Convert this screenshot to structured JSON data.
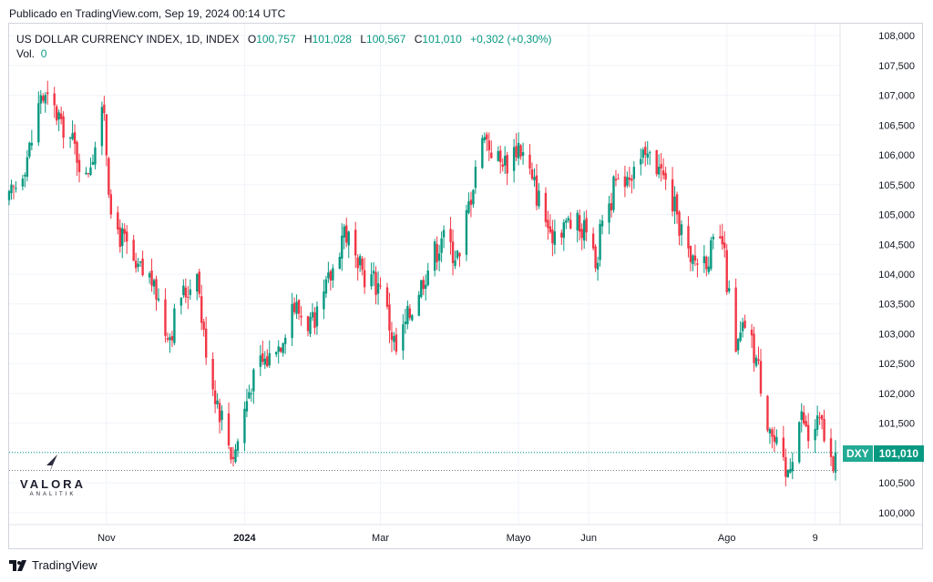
{
  "header": {
    "published": "Publicado en TradingView.com, Sep 19, 2024 00:14 UTC"
  },
  "legend": {
    "symbol": "US DOLLAR CURRENCY INDEX, 1D, INDEX",
    "open_label": "O",
    "open": "100,757",
    "high_label": "H",
    "high": "101,028",
    "low_label": "L",
    "low": "100,567",
    "close_label": "C",
    "close": "101,010",
    "change": "+0,302 (+0,30%)",
    "vol_label": "Vol.",
    "vol_value": "0"
  },
  "badge": {
    "symbol": "DXY",
    "price": "101,010"
  },
  "watermark": {
    "brand": "VALORA",
    "sub": "ANALITIK"
  },
  "footer": {
    "brand": "TradingView"
  },
  "colors": {
    "up": "#089981",
    "down": "#f23645",
    "grid": "#f0f3fa",
    "text": "#131722"
  },
  "chart_data": {
    "type": "candlestick",
    "title": "US DOLLAR CURRENCY INDEX, 1D, INDEX",
    "ylim": [
      99800,
      108200
    ],
    "y_ticks": [
      100000,
      100500,
      101000,
      101500,
      102000,
      102500,
      103000,
      103500,
      104000,
      104500,
      105000,
      105500,
      106000,
      106500,
      107000,
      107500,
      108000
    ],
    "y_tick_labels": [
      "100,000",
      "100,500",
      "101,000",
      "101,500",
      "102,000",
      "102,500",
      "103,000",
      "103,500",
      "104,000",
      "104,500",
      "105,000",
      "105,500",
      "106,000",
      "106,500",
      "107,000",
      "107,500",
      "108,000"
    ],
    "x_ticks": [
      {
        "label": "Nov",
        "date": "2023-11-01",
        "bold": false
      },
      {
        "label": "2024",
        "date": "2024-01-01",
        "bold": true
      },
      {
        "label": "Mar",
        "date": "2024-03-01",
        "bold": false
      },
      {
        "label": "Mayo",
        "date": "2024-05-01",
        "bold": false
      },
      {
        "label": "Jun",
        "date": "2024-06-01",
        "bold": false
      },
      {
        "label": "Ago",
        "date": "2024-08-01",
        "bold": false
      },
      {
        "label": "9",
        "date": "2024-09-09",
        "bold": false
      }
    ],
    "last_price": 101.01,
    "prev_close": 100.708,
    "anchors": [
      {
        "date": "2023-09-19",
        "close": 105.2
      },
      {
        "date": "2023-09-29",
        "close": 106.2
      },
      {
        "date": "2023-10-03",
        "close": 107.0
      },
      {
        "date": "2023-10-12",
        "close": 106.6
      },
      {
        "date": "2023-10-23",
        "close": 105.7
      },
      {
        "date": "2023-10-31",
        "close": 106.7
      },
      {
        "date": "2023-11-03",
        "close": 105.0
      },
      {
        "date": "2023-11-14",
        "close": 104.1
      },
      {
        "date": "2023-11-22",
        "close": 103.9
      },
      {
        "date": "2023-11-28",
        "close": 102.9
      },
      {
        "date": "2023-12-04",
        "close": 103.6
      },
      {
        "date": "2023-12-11",
        "close": 104.0
      },
      {
        "date": "2023-12-15",
        "close": 102.6
      },
      {
        "date": "2023-12-27",
        "close": 100.9
      },
      {
        "date": "2024-01-05",
        "close": 102.4
      },
      {
        "date": "2024-01-15",
        "close": 102.7
      },
      {
        "date": "2024-01-22",
        "close": 103.5
      },
      {
        "date": "2024-02-01",
        "close": 103.1
      },
      {
        "date": "2024-02-09",
        "close": 104.1
      },
      {
        "date": "2024-02-14",
        "close": 104.8
      },
      {
        "date": "2024-02-20",
        "close": 104.1
      },
      {
        "date": "2024-03-01",
        "close": 103.8
      },
      {
        "date": "2024-03-08",
        "close": 102.7
      },
      {
        "date": "2024-03-19",
        "close": 103.9
      },
      {
        "date": "2024-03-28",
        "close": 104.6
      },
      {
        "date": "2024-04-05",
        "close": 104.3
      },
      {
        "date": "2024-04-12",
        "close": 105.8
      },
      {
        "date": "2024-04-16",
        "close": 106.3
      },
      {
        "date": "2024-04-24",
        "close": 105.8
      },
      {
        "date": "2024-05-01",
        "close": 106.2
      },
      {
        "date": "2024-05-07",
        "close": 105.6
      },
      {
        "date": "2024-05-15",
        "close": 104.7
      },
      {
        "date": "2024-05-22",
        "close": 104.9
      },
      {
        "date": "2024-05-31",
        "close": 104.7
      },
      {
        "date": "2024-06-04",
        "close": 104.1
      },
      {
        "date": "2024-06-07",
        "close": 104.9
      },
      {
        "date": "2024-06-14",
        "close": 105.6
      },
      {
        "date": "2024-06-21",
        "close": 105.8
      },
      {
        "date": "2024-06-26",
        "close": 106.0
      },
      {
        "date": "2024-07-02",
        "close": 105.8
      },
      {
        "date": "2024-07-10",
        "close": 105.0
      },
      {
        "date": "2024-07-16",
        "close": 104.2
      },
      {
        "date": "2024-07-22",
        "close": 104.3
      },
      {
        "date": "2024-07-30",
        "close": 104.5
      },
      {
        "date": "2024-08-05",
        "close": 102.7
      },
      {
        "date": "2024-08-09",
        "close": 103.1
      },
      {
        "date": "2024-08-14",
        "close": 102.6
      },
      {
        "date": "2024-08-20",
        "close": 101.4
      },
      {
        "date": "2024-08-27",
        "close": 100.6
      },
      {
        "date": "2024-09-03",
        "close": 101.7
      },
      {
        "date": "2024-09-06",
        "close": 101.2
      },
      {
        "date": "2024-09-11",
        "close": 101.6
      },
      {
        "date": "2024-09-17",
        "close": 100.7
      },
      {
        "date": "2024-09-18",
        "close": 101.01
      }
    ]
  }
}
